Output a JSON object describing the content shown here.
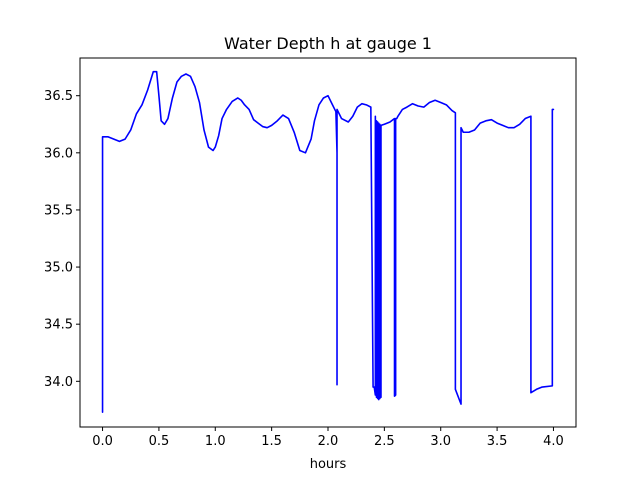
{
  "chart_data": {
    "type": "line",
    "title": "Water Depth h at gauge 1",
    "xlabel": "hours",
    "ylabel": "",
    "xlim": [
      -0.2,
      4.2
    ],
    "ylim": [
      33.6,
      36.83
    ],
    "xticks": [
      0.0,
      0.5,
      1.0,
      1.5,
      2.0,
      2.5,
      3.0,
      3.5,
      4.0
    ],
    "xtick_labels": [
      "0.0",
      "0.5",
      "1.0",
      "1.5",
      "2.0",
      "2.5",
      "3.0",
      "3.5",
      "4.0"
    ],
    "yticks": [
      34.0,
      34.5,
      35.0,
      35.5,
      36.0,
      36.5
    ],
    "ytick_labels": [
      "34.0",
      "34.5",
      "35.0",
      "35.5",
      "36.0",
      "36.5"
    ],
    "grid": false,
    "line_color": "#0000ff",
    "series": [
      {
        "x": [
          0.0,
          0.0,
          0.05,
          0.1,
          0.15,
          0.2,
          0.25,
          0.3,
          0.35,
          0.4,
          0.45,
          0.48,
          0.5,
          0.52,
          0.55,
          0.58,
          0.62,
          0.66,
          0.7,
          0.74,
          0.78,
          0.82,
          0.86,
          0.9,
          0.94,
          0.98,
          1.0,
          1.03,
          1.06,
          1.1,
          1.15,
          1.2,
          1.23,
          1.26,
          1.3,
          1.34,
          1.38,
          1.42,
          1.46,
          1.5,
          1.55,
          1.6,
          1.65,
          1.7,
          1.75,
          1.8,
          1.85,
          1.88,
          1.92,
          1.96,
          2.0,
          2.04,
          2.07,
          2.08,
          2.08,
          2.08,
          2.12,
          2.18,
          2.22,
          2.26,
          2.3,
          2.34,
          2.38,
          2.4,
          2.41,
          2.42,
          2.42,
          2.43,
          2.43,
          2.44,
          2.44,
          2.45,
          2.45,
          2.46,
          2.46,
          2.47,
          2.47,
          2.5,
          2.55,
          2.59,
          2.59,
          2.6,
          2.6,
          2.61,
          2.62,
          2.66,
          2.7,
          2.75,
          2.8,
          2.85,
          2.9,
          2.95,
          3.0,
          3.05,
          3.1,
          3.13,
          3.13,
          3.18,
          3.18,
          3.2,
          3.25,
          3.3,
          3.35,
          3.4,
          3.45,
          3.5,
          3.55,
          3.6,
          3.65,
          3.7,
          3.75,
          3.8,
          3.8,
          3.85,
          3.9,
          3.99,
          3.99,
          4.0
        ],
        "y": [
          33.73,
          36.14,
          36.14,
          36.12,
          36.1,
          36.12,
          36.2,
          36.34,
          36.42,
          36.55,
          36.71,
          36.71,
          36.5,
          36.28,
          36.25,
          36.3,
          36.48,
          36.62,
          36.67,
          36.69,
          36.67,
          36.58,
          36.44,
          36.2,
          36.05,
          36.02,
          36.05,
          36.15,
          36.3,
          36.38,
          36.45,
          36.48,
          36.46,
          36.42,
          36.38,
          36.29,
          36.26,
          36.23,
          36.22,
          36.24,
          36.28,
          36.33,
          36.3,
          36.18,
          36.02,
          36.0,
          36.12,
          36.28,
          36.42,
          36.48,
          36.5,
          36.42,
          36.36,
          36.0,
          33.97,
          36.38,
          36.3,
          36.27,
          36.32,
          36.4,
          36.43,
          36.42,
          36.4,
          33.95,
          33.95,
          33.88,
          36.32,
          33.86,
          36.28,
          33.85,
          36.27,
          33.84,
          36.26,
          33.85,
          36.25,
          33.86,
          36.24,
          36.25,
          36.27,
          36.3,
          33.87,
          33.88,
          36.3,
          36.3,
          36.32,
          36.38,
          36.4,
          36.43,
          36.41,
          36.4,
          36.44,
          36.46,
          36.44,
          36.42,
          36.37,
          36.35,
          33.93,
          33.8,
          36.22,
          36.18,
          36.18,
          36.2,
          36.26,
          36.28,
          36.29,
          36.26,
          36.24,
          36.22,
          36.22,
          36.25,
          36.3,
          36.32,
          33.9,
          33.93,
          33.95,
          33.96,
          36.38,
          36.38
        ]
      }
    ]
  }
}
